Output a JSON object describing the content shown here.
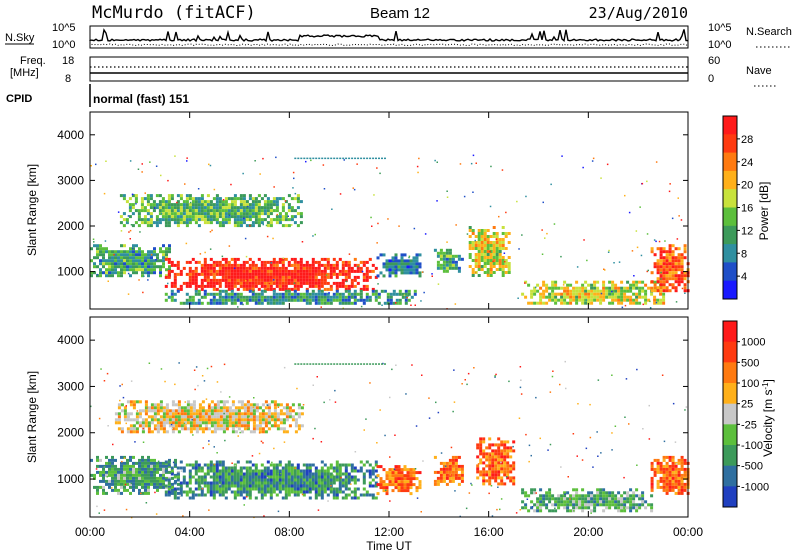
{
  "header": {
    "station": "McMurdo (fitACF)",
    "beam": "Beam 12",
    "date": "23/Aug/2010"
  },
  "panels": {
    "nsky_label": "N.Sky",
    "nsky_ticks": [
      "10^5",
      "10^0"
    ],
    "nsearch_label": "N.Search",
    "nsearch_ticks": [
      "10^5",
      "10^0"
    ],
    "freq_label_1": "Freq.",
    "freq_label_2": "[MHz]",
    "freq_ticks": [
      "18",
      "8"
    ],
    "nave_label": "Nave",
    "nave_ticks": [
      "60",
      "0"
    ],
    "cpid_label": "CPID",
    "cpid_value": "normal (fast) 151"
  },
  "chart_data": [
    {
      "type": "heatmap",
      "name": "power",
      "ylabel": "Slant Range [km]",
      "ylim": [
        180,
        4500
      ],
      "yticks": [
        "1000",
        "2000",
        "3000",
        "4000"
      ],
      "xlim": [
        0,
        24
      ],
      "colorbar": {
        "label": "Power [dB]",
        "ticks": [
          "4",
          "8",
          "12",
          "16",
          "20",
          "24",
          "28"
        ],
        "colors": [
          "#1a1aff",
          "#1f4fc8",
          "#2f8fa0",
          "#3c9a5a",
          "#5cbf3c",
          "#c8e23c",
          "#ffb01a",
          "#ff7a10",
          "#ff3a10",
          "#ff1a1a"
        ]
      },
      "bands": [
        {
          "t0": 0.0,
          "t1": 3.2,
          "r0": 900,
          "r1": 1600,
          "level": 0.35
        },
        {
          "t0": 3.0,
          "t1": 11.5,
          "r0": 600,
          "r1": 1300,
          "level": 0.92
        },
        {
          "t0": 11.5,
          "t1": 13.3,
          "r0": 900,
          "r1": 1400,
          "level": 0.25
        },
        {
          "t0": 13.8,
          "t1": 14.9,
          "r0": 1000,
          "r1": 1500,
          "level": 0.35
        },
        {
          "t0": 15.2,
          "t1": 16.8,
          "r0": 900,
          "r1": 2000,
          "level": 0.55
        },
        {
          "t0": 17.3,
          "t1": 23.0,
          "r0": 300,
          "r1": 800,
          "level": 0.55
        },
        {
          "t0": 22.5,
          "t1": 24.0,
          "r0": 600,
          "r1": 1600,
          "level": 0.8
        },
        {
          "t0": 1.2,
          "t1": 8.5,
          "r0": 2000,
          "r1": 2700,
          "level": 0.4
        },
        {
          "t0": 3.0,
          "t1": 13.0,
          "r0": 300,
          "r1": 600,
          "level": 0.3
        }
      ]
    },
    {
      "type": "heatmap",
      "name": "velocity",
      "ylabel": "Slant Range [km]",
      "ylim": [
        180,
        4500
      ],
      "yticks": [
        "1000",
        "2000",
        "3000",
        "4000"
      ],
      "xlim": [
        0,
        24
      ],
      "xticks": [
        "00:00",
        "04:00",
        "08:00",
        "12:00",
        "16:00",
        "20:00",
        "00:00"
      ],
      "xlabel": "Time UT",
      "colorbar": {
        "label": "Velocity [m s^-1]",
        "ticks": [
          "1000",
          "500",
          "100",
          "25",
          "-25",
          "-100",
          "-500",
          "-1000"
        ],
        "colors": [
          "#2040c0",
          "#2f6fa0",
          "#3c9a5a",
          "#5cbf3c",
          "#c8c8c8",
          "#ffb01a",
          "#ff7a10",
          "#ff3a10",
          "#ff1a1a"
        ]
      },
      "bands": [
        {
          "t0": 0.0,
          "t1": 3.5,
          "r0": 700,
          "r1": 1500,
          "level": 0.3
        },
        {
          "t0": 3.0,
          "t1": 11.5,
          "r0": 600,
          "r1": 1400,
          "level": 0.25
        },
        {
          "t0": 11.5,
          "t1": 13.3,
          "r0": 700,
          "r1": 1300,
          "level": 0.75
        },
        {
          "t0": 13.8,
          "t1": 15.0,
          "r0": 900,
          "r1": 1500,
          "level": 0.75
        },
        {
          "t0": 15.5,
          "t1": 17.0,
          "r0": 900,
          "r1": 1900,
          "level": 0.75
        },
        {
          "t0": 17.3,
          "t1": 22.5,
          "r0": 300,
          "r1": 800,
          "level": 0.35
        },
        {
          "t0": 22.5,
          "t1": 24.0,
          "r0": 700,
          "r1": 1500,
          "level": 0.75
        },
        {
          "t0": 1.0,
          "t1": 8.5,
          "r0": 2000,
          "r1": 2700,
          "level": 0.55
        }
      ]
    }
  ]
}
